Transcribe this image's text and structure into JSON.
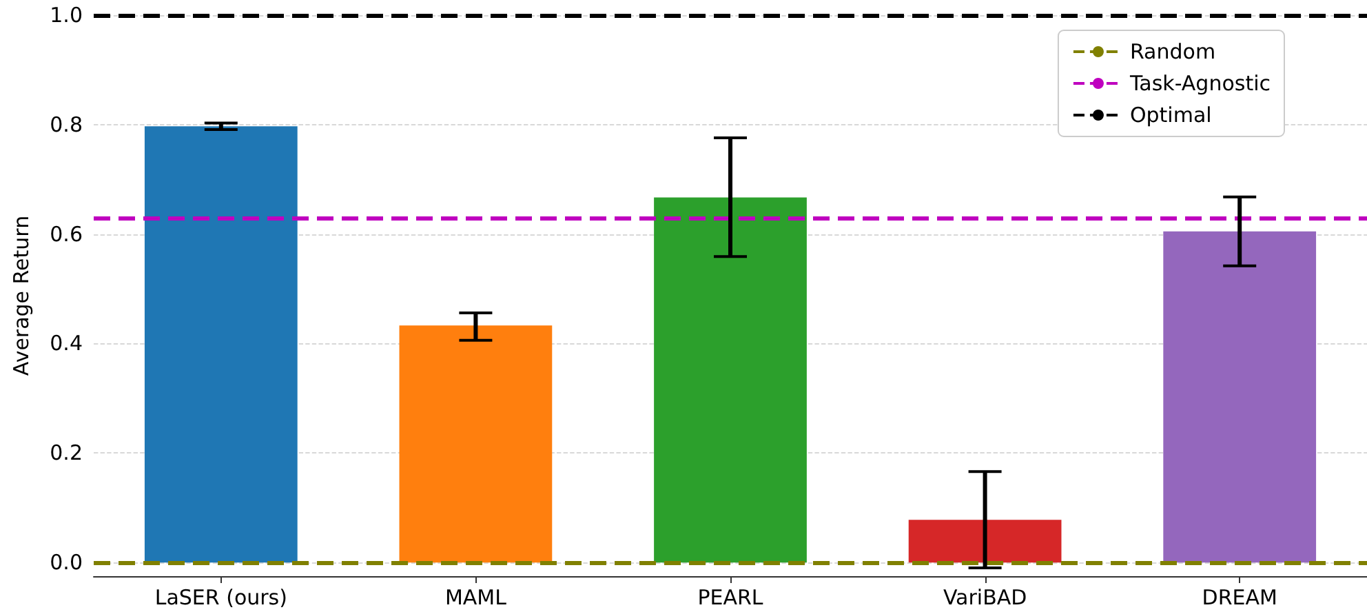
{
  "chart_data": {
    "type": "bar",
    "ylabel": "Average Return",
    "categories": [
      "LaSER (ours)",
      "MAML",
      "PEARL",
      "VariBAD",
      "DREAM"
    ],
    "values": [
      0.797,
      0.433,
      0.667,
      0.078,
      0.605
    ],
    "colors": [
      "#1f77b4",
      "#ff7f0e",
      "#2ca02c",
      "#d62728",
      "#9467bd"
    ],
    "errors": [
      0.006,
      [
        0.406,
        0.456
      ],
      [
        0.559,
        0.776
      ],
      [
        -0.01,
        0.166
      ],
      [
        0.542,
        0.668
      ]
    ],
    "ylim": [
      -0.025,
      1.0
    ],
    "yticks": [
      {
        "value": 0,
        "label": "0.0"
      },
      0.2,
      0.4,
      0.6,
      0.8,
      {
        "value": 1,
        "label": "1.0"
      }
    ],
    "ref_lines": [
      {
        "axis": "y",
        "value": 0,
        "label": "Random",
        "color": "#808000",
        "line_style": "dashed"
      },
      {
        "axis": "y",
        "value": 0.632,
        "label": "Task-Agnostic",
        "color": "#bf00bf",
        "line_style": "dashed"
      },
      {
        "axis": "y",
        "value": 1.0,
        "label": "Optimal",
        "color": "#000000",
        "line_style": "dashed"
      }
    ],
    "grid": "y",
    "legend": "top right"
  }
}
